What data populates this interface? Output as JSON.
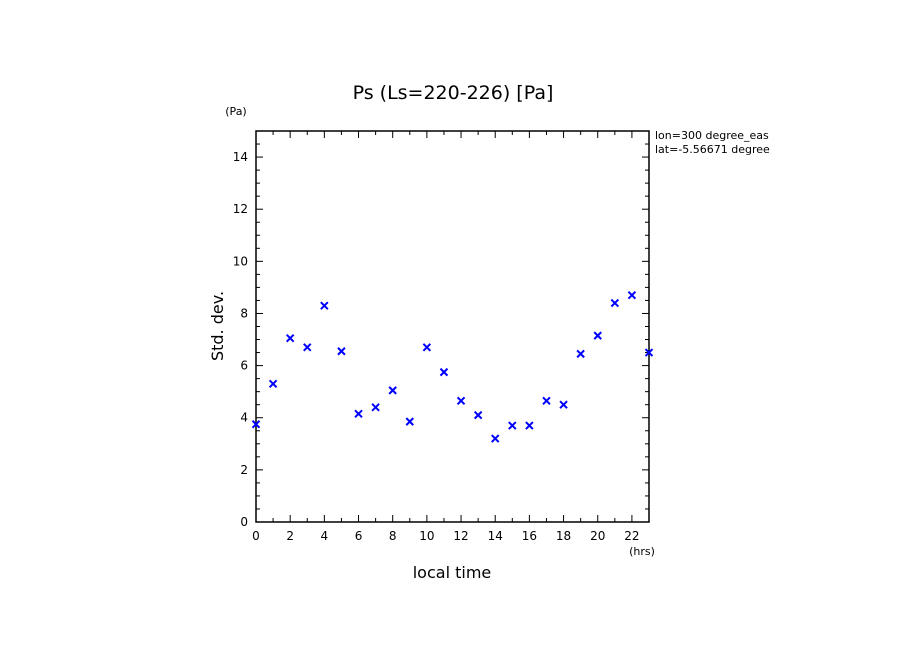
{
  "chart_data": {
    "type": "scatter",
    "title": "Ps (Ls=220-226) [Pa]",
    "xlabel": "local time",
    "ylabel": "Std. dev.",
    "x_unit": "(hrs)",
    "y_unit": "(Pa)",
    "xlim": [
      0,
      23
    ],
    "ylim": [
      0,
      15
    ],
    "x_ticks": [
      0,
      2,
      4,
      6,
      8,
      10,
      12,
      14,
      16,
      18,
      20,
      22
    ],
    "y_ticks": [
      0,
      2,
      4,
      6,
      8,
      10,
      12,
      14
    ],
    "annotations": [
      "lon=300 degree_eas",
      "lat=-5.56671 degree"
    ],
    "marker_color": "#0000ff",
    "marker": "x",
    "series": [
      {
        "x": [
          0,
          1,
          2,
          3,
          4,
          5,
          6,
          7,
          8,
          9,
          10,
          11,
          12,
          13,
          14,
          15,
          16,
          17,
          18,
          19,
          20,
          21,
          22,
          23
        ],
        "y": [
          3.75,
          5.3,
          7.05,
          6.7,
          8.3,
          6.55,
          4.15,
          4.4,
          5.05,
          3.85,
          6.7,
          5.75,
          4.65,
          4.1,
          3.2,
          3.7,
          3.7,
          4.65,
          4.5,
          6.45,
          7.15,
          8.4,
          8.7,
          6.5
        ]
      }
    ]
  }
}
